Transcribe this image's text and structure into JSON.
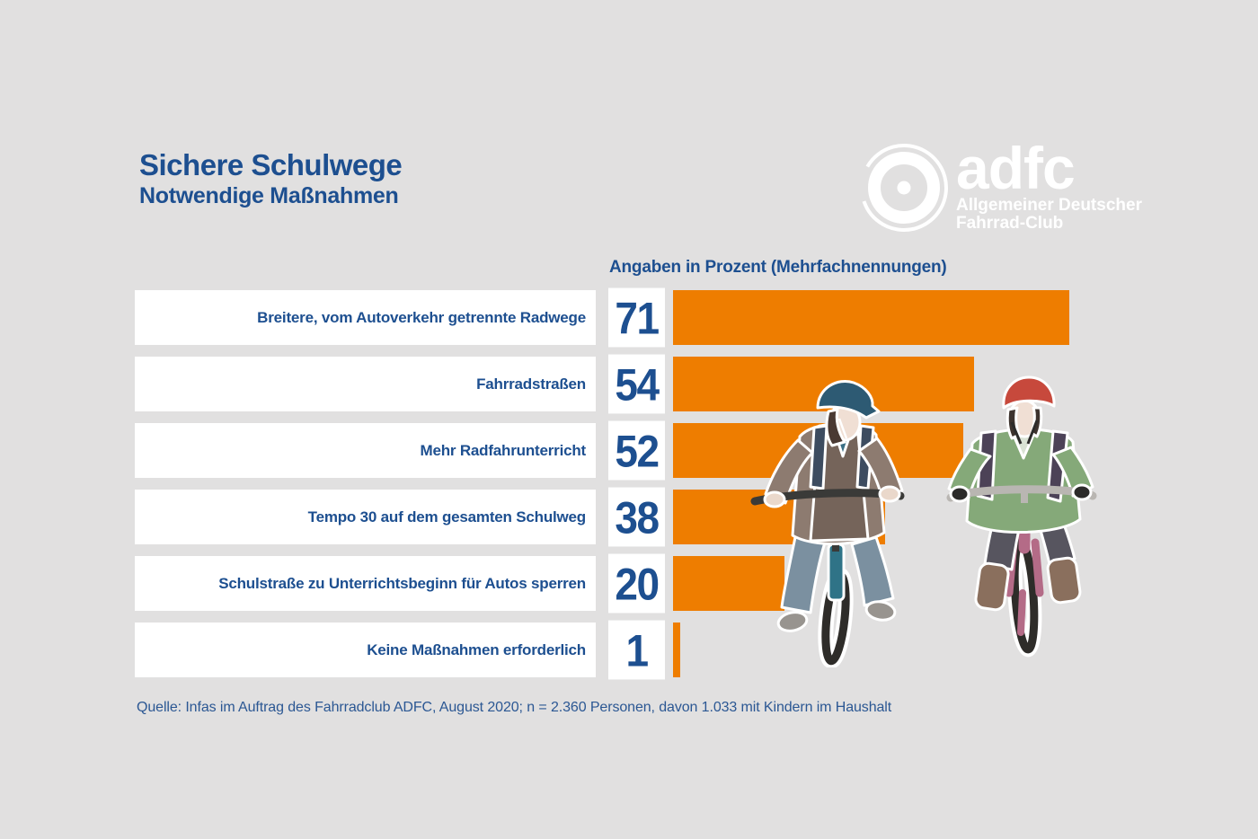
{
  "canvas": {
    "background": "#e1e0e0"
  },
  "header": {
    "title": "Sichere Schulwege",
    "subtitle": "Notwendige Maßnahmen",
    "text_color": "#1d4f90"
  },
  "logo": {
    "brand": "adfc",
    "name_line1": "Allgemeiner Deutscher",
    "name_line2": "Fahrrad-Club",
    "color": "#ffffff",
    "icon": "bicycle-wheel-icon"
  },
  "chart_data": {
    "type": "bar",
    "orientation": "horizontal",
    "title": "Sichere Schulwege – Notwendige Maßnahmen",
    "units_label": "Angaben in Prozent (Mehrfachnennungen)",
    "categories": [
      "Breitere, vom Autoverkehr getrennte Radwege",
      "Fahrradstraßen",
      "Mehr Radfahrunterricht",
      "Tempo 30 auf dem gesamten Schulweg",
      "Schulstraße zu Unterrichtsbeginn für Autos sperren",
      "Keine Maßnahmen erforderlich"
    ],
    "values": [
      71,
      54,
      52,
      38,
      20,
      1
    ],
    "value_unit": "Prozent",
    "xlim": [
      0,
      100
    ],
    "grid": false,
    "legend": false,
    "bar_color": "#ee7d00",
    "label_color": "#1d4f90",
    "label_box_background": "#ffffff"
  },
  "source": "Quelle: Infas im Auftrag des Fahrradclub ADFC, August 2020; n = 2.360 Personen, davon 1.033 mit Kindern im Haushalt",
  "illustration": {
    "description": "Zwei Kinder mit Fahrradhelmen fahren Fahrrad (Aquarell-Illustration)",
    "left_child": {
      "helmet_color": "#2d5a73",
      "sweater_color": "#8d7b70",
      "vest_color": "#75645a",
      "pants_color": "#7b90a0",
      "bike_color": "#2f7387"
    },
    "right_child": {
      "helmet_color": "#c7493c",
      "sweater_color": "#85a979",
      "strap_color": "#4c4257",
      "boots_color": "#8a6f5d",
      "bike_color": "#b46b87"
    }
  }
}
